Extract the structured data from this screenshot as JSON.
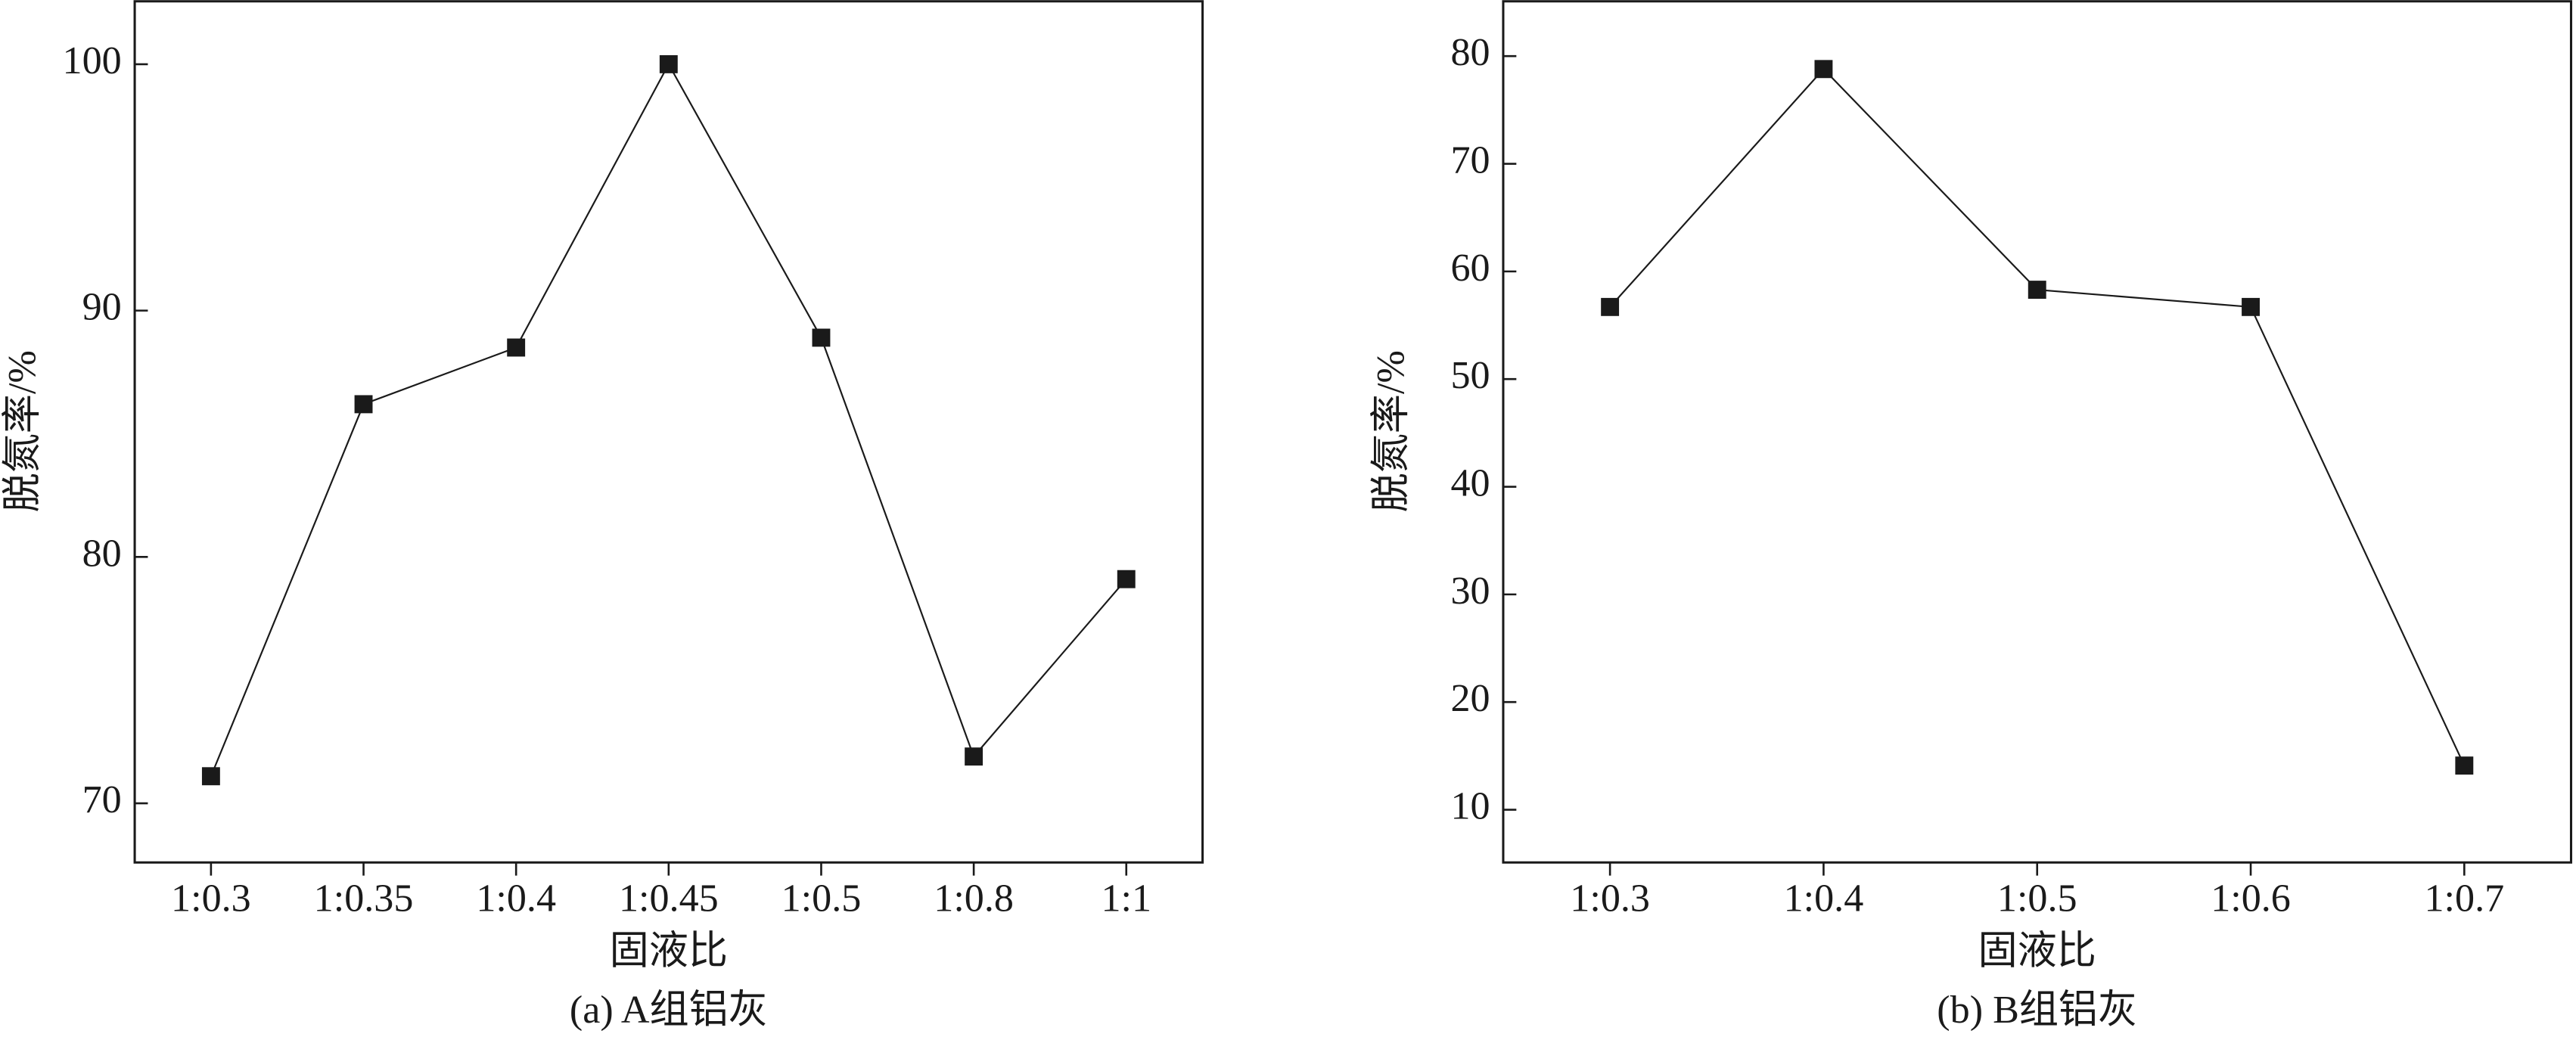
{
  "chart_data": [
    {
      "type": "line",
      "title": "(a) A组铝灰",
      "xlabel": "固液比",
      "ylabel": "脱氮率/%",
      "categories": [
        "1:0.3",
        "1:0.35",
        "1:0.4",
        "1:0.45",
        "1:0.5",
        "1:0.8",
        "1:1"
      ],
      "values": [
        71.1,
        86.2,
        88.5,
        100,
        88.9,
        71.9,
        79.1
      ],
      "color": "#1a1a1a",
      "ylim": [
        67.6,
        102.6
      ],
      "yticks": [
        70,
        80,
        90,
        100
      ]
    },
    {
      "type": "line",
      "title": "(b) B组铝灰",
      "xlabel": "固液比",
      "ylabel": "脱氮率/%",
      "categories": [
        "1:0.3",
        "1:0.4",
        "1:0.5",
        "1:0.6",
        "1:0.7"
      ],
      "values": [
        56.7,
        78.8,
        58.3,
        56.7,
        14.1
      ],
      "color": "#1a1a1a",
      "ylim": [
        5.1,
        85.2
      ],
      "yticks": [
        10,
        20,
        30,
        40,
        50,
        60,
        70,
        80
      ]
    }
  ]
}
